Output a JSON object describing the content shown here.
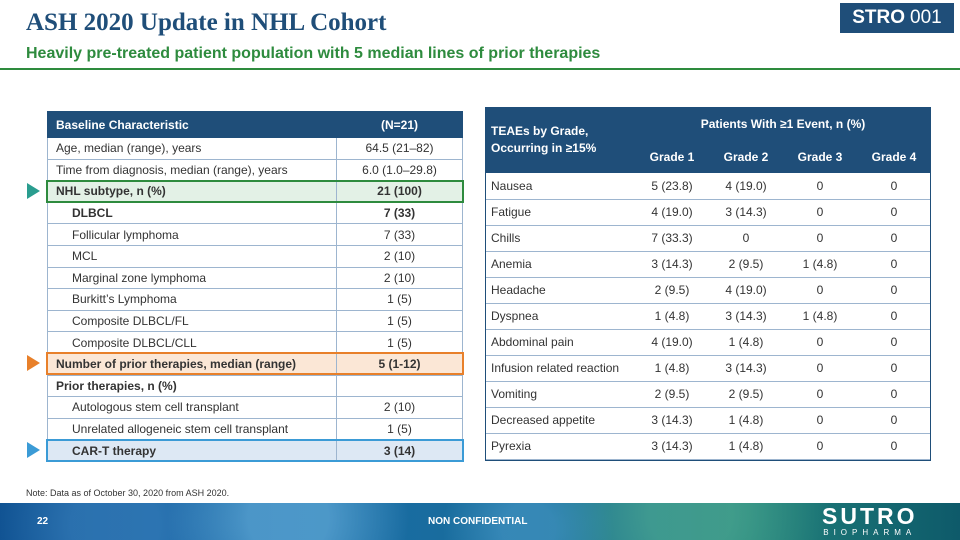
{
  "header": {
    "title": "ASH 2020 Update in NHL Cohort",
    "subtitle": "Heavily pre-treated patient population with 5 median lines of prior therapies",
    "badge_bold": "STRO",
    "badge_num": "001"
  },
  "baseline": {
    "col1": "Baseline Characteristic",
    "col2": "(N=21)",
    "rows": [
      {
        "label": "Age, median (range), years",
        "value": "64.5 (21–82)"
      },
      {
        "label": "Time from diagnosis, median (range), years",
        "value": "6.0 (1.0–29.8)"
      },
      {
        "label": "NHL subtype, n (%)",
        "value": "21 (100)"
      },
      {
        "label": "DLBCL",
        "value": "7 (33)"
      },
      {
        "label": "Follicular lymphoma",
        "value": "7 (33)"
      },
      {
        "label": "MCL",
        "value": "2 (10)"
      },
      {
        "label": "Marginal zone lymphoma",
        "value": "2 (10)"
      },
      {
        "label": "Burkitt’s Lymphoma",
        "value": "1 (5)"
      },
      {
        "label": "Composite DLBCL/FL",
        "value": "1 (5)"
      },
      {
        "label": "Composite DLBCL/CLL",
        "value": "1 (5)"
      },
      {
        "label": "Number of prior therapies, median (range)",
        "value": "5 (1-12)"
      },
      {
        "label": "Prior therapies, n (%)",
        "value": ""
      },
      {
        "label": "Autologous stem cell transplant",
        "value": "2 (10)"
      },
      {
        "label": "Unrelated allogeneic stem cell transplant",
        "value": "1 (5)"
      },
      {
        "label": "CAR-T therapy",
        "value": "3 (14)"
      }
    ]
  },
  "teae": {
    "corner": "TEAEs by Grade, Occurring in ≥15%",
    "group": "Patients With ≥1 Event, n (%)",
    "grades": [
      "Grade 1",
      "Grade 2",
      "Grade 3",
      "Grade 4"
    ],
    "rows": [
      {
        "event": "Nausea",
        "g1": "5 (23.8)",
        "g2": "4 (19.0)",
        "g3": "0",
        "g4": "0"
      },
      {
        "event": "Fatigue",
        "g1": "4 (19.0)",
        "g2": "3 (14.3)",
        "g3": "0",
        "g4": "0"
      },
      {
        "event": "Chills",
        "g1": "7 (33.3)",
        "g2": "0",
        "g3": "0",
        "g4": "0"
      },
      {
        "event": "Anemia",
        "g1": "3 (14.3)",
        "g2": "2 (9.5)",
        "g3": "1 (4.8)",
        "g4": "0"
      },
      {
        "event": "Headache",
        "g1": "2 (9.5)",
        "g2": "4 (19.0)",
        "g3": "0",
        "g4": "0"
      },
      {
        "event": "Dyspnea",
        "g1": "1 (4.8)",
        "g2": "3 (14.3)",
        "g3": "1 (4.8)",
        "g4": "0"
      },
      {
        "event": "Abdominal pain",
        "g1": "4 (19.0)",
        "g2": "1 (4.8)",
        "g3": "0",
        "g4": "0"
      },
      {
        "event": "Infusion related reaction",
        "g1": "1 (4.8)",
        "g2": "3 (14.3)",
        "g3": "0",
        "g4": "0"
      },
      {
        "event": "Vomiting",
        "g1": "2 (9.5)",
        "g2": "2 (9.5)",
        "g3": "0",
        "g4": "0"
      },
      {
        "event": "Decreased appetite",
        "g1": "3 (14.3)",
        "g2": "1 (4.8)",
        "g3": "0",
        "g4": "0"
      },
      {
        "event": "Pyrexia",
        "g1": "3 (14.3)",
        "g2": "1 (4.8)",
        "g3": "0",
        "g4": "0"
      }
    ]
  },
  "note": "Note: Data as of October 30, 2020 from ASH 2020.",
  "footer": {
    "page": "22",
    "confidential": "NON CONFIDENTIAL",
    "logo_main": "SUTRO",
    "logo_sub": "BIOPHARMA"
  },
  "colors": {
    "navy": "#1f4e79",
    "green": "#2e8b3e",
    "orange": "#e8802a",
    "blue_hl": "#3b9bd6"
  }
}
